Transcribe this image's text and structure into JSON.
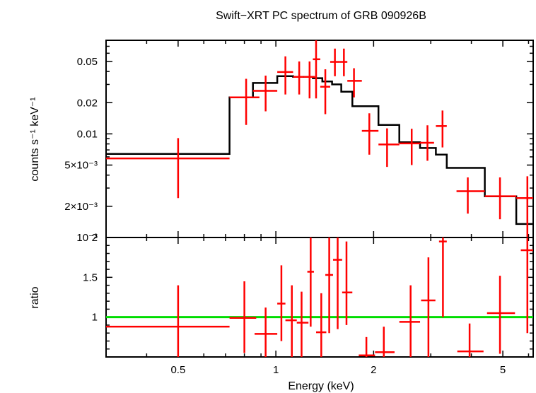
{
  "chart_data": [
    {
      "type": "line",
      "panel": "spectrum",
      "title": "Swift−XRT PC spectrum of GRB 090926B",
      "xlabel": "",
      "ylabel": "counts s⁻¹ keV⁻¹",
      "xscale": "log",
      "yscale": "log",
      "xlim": [
        0.3,
        6.2
      ],
      "ylim": [
        0.001,
        0.08
      ],
      "yticks": [
        {
          "value": 0.05,
          "label": "0.05"
        },
        {
          "value": 0.02,
          "label": "0.02"
        },
        {
          "value": 0.01,
          "label": "0.01"
        },
        {
          "value": 0.005,
          "label": "5×10⁻³"
        },
        {
          "value": 0.002,
          "label": "2×10⁻³"
        },
        {
          "value": 0.001,
          "label": "10⁻³"
        }
      ],
      "series": [
        {
          "role": "data",
          "color": "#ff0000",
          "points": [
            {
              "x": 0.5,
              "xlo": 0.3,
              "xhi": 0.72,
              "y": 0.0058,
              "ylo": 0.0024,
              "yhi": 0.0091
            },
            {
              "x": 0.81,
              "xlo": 0.72,
              "xhi": 0.89,
              "y": 0.0225,
              "ylo": 0.0122,
              "yhi": 0.034
            },
            {
              "x": 0.93,
              "xlo": 0.85,
              "xhi": 1.01,
              "y": 0.026,
              "ylo": 0.0165,
              "yhi": 0.0365
            },
            {
              "x": 1.07,
              "xlo": 1.01,
              "xhi": 1.13,
              "y": 0.0395,
              "ylo": 0.024,
              "yhi": 0.056
            },
            {
              "x": 1.18,
              "xlo": 1.13,
              "xhi": 1.22,
              "y": 0.0355,
              "ylo": 0.024,
              "yhi": 0.05
            },
            {
              "x": 1.27,
              "xlo": 1.22,
              "xhi": 1.32,
              "y": 0.0355,
              "ylo": 0.022,
              "yhi": 0.05
            },
            {
              "x": 1.33,
              "xlo": 1.3,
              "xhi": 1.37,
              "y": 0.0525,
              "ylo": 0.022,
              "yhi": 0.08
            },
            {
              "x": 1.42,
              "xlo": 1.37,
              "xhi": 1.47,
              "y": 0.0285,
              "ylo": 0.0155,
              "yhi": 0.042
            },
            {
              "x": 1.52,
              "xlo": 1.47,
              "xhi": 1.57,
              "y": 0.0495,
              "ylo": 0.036,
              "yhi": 0.0665
            },
            {
              "x": 1.62,
              "xlo": 1.57,
              "xhi": 1.66,
              "y": 0.0495,
              "ylo": 0.036,
              "yhi": 0.0665
            },
            {
              "x": 1.74,
              "xlo": 1.66,
              "xhi": 1.84,
              "y": 0.0325,
              "ylo": 0.0225,
              "yhi": 0.043
            },
            {
              "x": 1.94,
              "xlo": 1.84,
              "xhi": 2.07,
              "y": 0.0107,
              "ylo": 0.0063,
              "yhi": 0.0158
            },
            {
              "x": 2.2,
              "xlo": 2.07,
              "xhi": 2.4,
              "y": 0.0079,
              "ylo": 0.0048,
              "yhi": 0.0113
            },
            {
              "x": 2.62,
              "xlo": 2.4,
              "xhi": 2.78,
              "y": 0.0081,
              "ylo": 0.005,
              "yhi": 0.0112
            },
            {
              "x": 2.93,
              "xlo": 2.78,
              "xhi": 3.07,
              "y": 0.0082,
              "ylo": 0.0055,
              "yhi": 0.0121
            },
            {
              "x": 3.26,
              "xlo": 3.11,
              "xhi": 3.36,
              "y": 0.0119,
              "ylo": 0.0074,
              "yhi": 0.0168
            },
            {
              "x": 3.9,
              "xlo": 3.6,
              "xhi": 4.4,
              "y": 0.0028,
              "ylo": 0.0017,
              "yhi": 0.0038
            },
            {
              "x": 4.9,
              "xlo": 4.4,
              "xhi": 5.5,
              "y": 0.0025,
              "ylo": 0.0015,
              "yhi": 0.0038
            },
            {
              "x": 5.95,
              "xlo": 5.5,
              "xhi": 6.2,
              "y": 0.0024,
              "ylo": 0.001,
              "yhi": 0.0039
            }
          ]
        },
        {
          "role": "model",
          "color": "#000000",
          "step": [
            {
              "x0": 0.3,
              "x1": 0.72,
              "y": 0.0064
            },
            {
              "x0": 0.72,
              "x1": 0.85,
              "y": 0.0225
            },
            {
              "x0": 0.85,
              "x1": 1.01,
              "y": 0.031
            },
            {
              "x0": 1.01,
              "x1": 1.13,
              "y": 0.036
            },
            {
              "x0": 1.13,
              "x1": 1.3,
              "y": 0.0355
            },
            {
              "x0": 1.3,
              "x1": 1.39,
              "y": 0.0345
            },
            {
              "x0": 1.39,
              "x1": 1.49,
              "y": 0.032
            },
            {
              "x0": 1.49,
              "x1": 1.59,
              "y": 0.03
            },
            {
              "x0": 1.59,
              "x1": 1.72,
              "y": 0.0255
            },
            {
              "x0": 1.72,
              "x1": 1.84,
              "y": 0.0185
            },
            {
              "x0": 1.84,
              "x1": 2.07,
              "y": 0.0185
            },
            {
              "x0": 2.07,
              "x1": 2.4,
              "y": 0.0122
            },
            {
              "x0": 2.4,
              "x1": 2.78,
              "y": 0.0083
            },
            {
              "x0": 2.78,
              "x1": 3.11,
              "y": 0.0073
            },
            {
              "x0": 3.11,
              "x1": 3.36,
              "y": 0.0063
            },
            {
              "x0": 3.36,
              "x1": 4.4,
              "y": 0.0047
            },
            {
              "x0": 4.4,
              "x1": 5.5,
              "y": 0.0025
            },
            {
              "x0": 5.5,
              "x1": 6.2,
              "y": 0.00135
            }
          ]
        }
      ]
    },
    {
      "type": "scatter",
      "panel": "ratio",
      "xlabel": "Energy (keV)",
      "ylabel": "ratio",
      "xscale": "log",
      "yscale": "linear",
      "xlim": [
        0.3,
        6.2
      ],
      "ylim": [
        0.5,
        2.0
      ],
      "xticks": [
        {
          "value": 0.5,
          "label": "0.5"
        },
        {
          "value": 1,
          "label": "1"
        },
        {
          "value": 2,
          "label": "2"
        },
        {
          "value": 5,
          "label": "5"
        }
      ],
      "yticks": [
        {
          "value": 1,
          "label": "1"
        },
        {
          "value": 1.5,
          "label": "1.5"
        },
        {
          "value": 2,
          "label": "2"
        }
      ],
      "reference_line": {
        "y": 1,
        "color": "#00dd00"
      },
      "series": [
        {
          "role": "data",
          "color": "#ff0000",
          "points": [
            {
              "x": 0.5,
              "xlo": 0.3,
              "xhi": 0.72,
              "y": 0.88,
              "ylo": 0.5,
              "yhi": 1.4
            },
            {
              "x": 0.8,
              "xlo": 0.72,
              "xhi": 0.87,
              "y": 0.99,
              "ylo": 0.55,
              "yhi": 1.45
            },
            {
              "x": 0.93,
              "xlo": 0.86,
              "xhi": 1.01,
              "y": 0.79,
              "ylo": 0.5,
              "yhi": 1.12
            },
            {
              "x": 1.04,
              "xlo": 1.01,
              "xhi": 1.07,
              "y": 1.17,
              "ylo": 0.7,
              "yhi": 1.65
            },
            {
              "x": 1.12,
              "xlo": 1.07,
              "xhi": 1.16,
              "y": 0.96,
              "ylo": 0.5,
              "yhi": 1.4
            },
            {
              "x": 1.2,
              "xlo": 1.16,
              "xhi": 1.26,
              "y": 0.93,
              "ylo": 0.5,
              "yhi": 1.32
            },
            {
              "x": 1.28,
              "xlo": 1.25,
              "xhi": 1.31,
              "y": 1.57,
              "ylo": 0.88,
              "yhi": 2.0
            },
            {
              "x": 1.38,
              "xlo": 1.33,
              "xhi": 1.43,
              "y": 0.81,
              "ylo": 0.5,
              "yhi": 1.3
            },
            {
              "x": 1.46,
              "xlo": 1.42,
              "xhi": 1.5,
              "y": 1.53,
              "ylo": 0.8,
              "yhi": 2.0
            },
            {
              "x": 1.55,
              "xlo": 1.5,
              "xhi": 1.6,
              "y": 1.72,
              "ylo": 0.85,
              "yhi": 2.0
            },
            {
              "x": 1.65,
              "xlo": 1.6,
              "xhi": 1.72,
              "y": 1.31,
              "ylo": 0.9,
              "yhi": 1.95
            },
            {
              "x": 1.9,
              "xlo": 1.8,
              "xhi": 2.02,
              "y": 0.52,
              "ylo": 0.5,
              "yhi": 0.75
            },
            {
              "x": 2.15,
              "xlo": 2.02,
              "xhi": 2.32,
              "y": 0.56,
              "ylo": 0.5,
              "yhi": 0.88
            },
            {
              "x": 2.6,
              "xlo": 2.4,
              "xhi": 2.78,
              "y": 0.94,
              "ylo": 0.5,
              "yhi": 1.4
            },
            {
              "x": 2.95,
              "xlo": 2.8,
              "xhi": 3.1,
              "y": 1.21,
              "ylo": 0.5,
              "yhi": 1.75
            },
            {
              "x": 3.27,
              "xlo": 3.18,
              "xhi": 3.36,
              "y": 1.95,
              "ylo": 1.0,
              "yhi": 2.0
            },
            {
              "x": 3.95,
              "xlo": 3.62,
              "xhi": 4.36,
              "y": 0.57,
              "ylo": 0.5,
              "yhi": 0.92
            },
            {
              "x": 4.9,
              "xlo": 4.47,
              "xhi": 5.45,
              "y": 1.05,
              "ylo": 0.54,
              "yhi": 1.52
            },
            {
              "x": 5.95,
              "xlo": 5.68,
              "xhi": 6.2,
              "y": 1.84,
              "ylo": 0.8,
              "yhi": 2.0
            }
          ]
        }
      ]
    }
  ]
}
